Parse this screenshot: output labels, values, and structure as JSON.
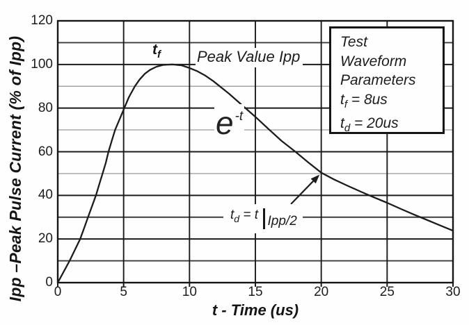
{
  "chart_data": {
    "type": "line",
    "title": "",
    "xlabel": "t - Time (us)",
    "ylabel": "Ipp –Peak Pulse Current (% of Ipp)",
    "xlim": [
      0,
      30
    ],
    "ylim": [
      0,
      120
    ],
    "x_ticks": [
      "0",
      "5",
      "10",
      "15",
      "20",
      "25",
      "30"
    ],
    "x_tick_values": [
      0,
      5,
      10,
      15,
      20,
      25,
      30
    ],
    "y_ticks": [
      "0",
      "20",
      "40",
      "60",
      "80",
      "100",
      "120"
    ],
    "y_tick_values": [
      0,
      20,
      40,
      60,
      80,
      100,
      120
    ],
    "grid": {
      "y_step": 10,
      "light_y_lines": [
        50,
        70,
        90
      ],
      "legend": "none"
    },
    "series": [
      {
        "name": "peak-pulse-current-waveform-8-20us",
        "points": [
          [
            0,
            0
          ],
          [
            0.45,
            5
          ],
          [
            0.9,
            10
          ],
          [
            1.3,
            15
          ],
          [
            1.7,
            20
          ],
          [
            2.0,
            25
          ],
          [
            2.3,
            30
          ],
          [
            2.6,
            35
          ],
          [
            2.9,
            40
          ],
          [
            3.15,
            45
          ],
          [
            3.4,
            50
          ],
          [
            3.65,
            55
          ],
          [
            3.85,
            60
          ],
          [
            4.1,
            65
          ],
          [
            4.35,
            70
          ],
          [
            4.7,
            75
          ],
          [
            5.05,
            80
          ],
          [
            5.4,
            85
          ],
          [
            5.85,
            90
          ],
          [
            6.2,
            93
          ],
          [
            6.6,
            95.7
          ],
          [
            7.0,
            97.5
          ],
          [
            7.5,
            99
          ],
          [
            8.0,
            99.8
          ],
          [
            8.7,
            100
          ],
          [
            9.4,
            99.6
          ],
          [
            10.0,
            98.4
          ],
          [
            10.6,
            96.9
          ],
          [
            11.2,
            94.9
          ],
          [
            11.8,
            92.4
          ],
          [
            12.3,
            90
          ],
          [
            13.0,
            86.6
          ],
          [
            14.0,
            81.3
          ],
          [
            15.0,
            76
          ],
          [
            16.0,
            70.4
          ],
          [
            17.0,
            64.9
          ],
          [
            18.0,
            60.2
          ],
          [
            19.0,
            55.2
          ],
          [
            20.0,
            50.4
          ],
          [
            21.0,
            47.2
          ],
          [
            22.0,
            44.4
          ],
          [
            23.0,
            41.7
          ],
          [
            24.0,
            39.1
          ],
          [
            25.0,
            36.6
          ],
          [
            26.0,
            33.9
          ],
          [
            27.0,
            31.3
          ],
          [
            28.0,
            28.8
          ],
          [
            29.0,
            26.3
          ],
          [
            30.0,
            23.8
          ]
        ]
      }
    ],
    "annotations": {
      "tf": {
        "base": "t",
        "sub": "f"
      },
      "peak": "Peak Value Ipp",
      "exp": {
        "base": "e",
        "sup": "-t"
      },
      "td": {
        "base": "t",
        "sub": "d",
        "eq": " = t",
        "cond": "Ipp/2"
      },
      "arrow": {
        "from": [
          17.7,
          36.0
        ],
        "to": [
          19.87,
          49.5
        ]
      }
    },
    "params_box": {
      "lines_plain": [
        "Test",
        "Waveform",
        "Parameters"
      ],
      "tf_line": {
        "base": "t",
        "sub": "f",
        "rest": " = 8us"
      },
      "td_line": {
        "base": "t",
        "sub": "d",
        "rest": " = 20us"
      }
    }
  }
}
